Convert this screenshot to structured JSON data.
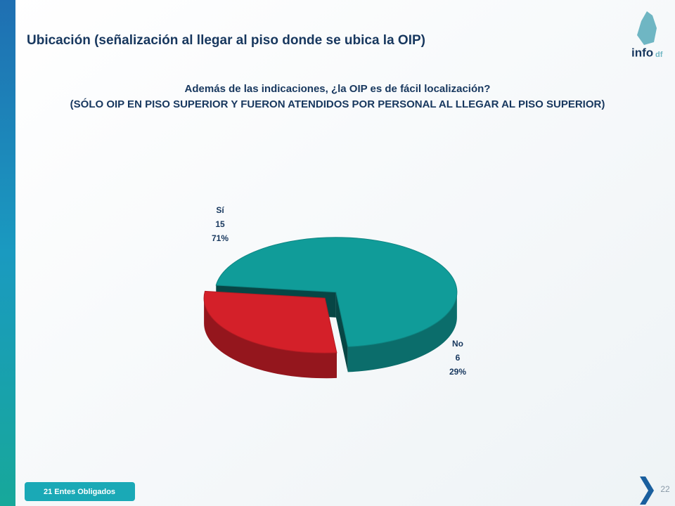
{
  "page": {
    "heading": "Ubicación (señalización al llegar al piso donde se ubica la OIP)",
    "footer_badge": "21 Entes Obligados",
    "page_number": "22",
    "logo_text": "info",
    "logo_suffix": "df"
  },
  "chart_data": {
    "type": "pie",
    "title": "Además de las indicaciones, ¿la OIP es de fácil localización?",
    "subtitle": "(SÓLO OIP EN PISO SUPERIOR Y FUERON ATENDIDOS POR PERSONAL AL LLEGAR AL PISO SUPERIOR)",
    "categories": [
      "Sí",
      "No"
    ],
    "values": [
      15,
      6
    ],
    "percent_labels": [
      "71%",
      "29%"
    ],
    "colors": [
      "#109c99",
      "#d42029"
    ]
  }
}
